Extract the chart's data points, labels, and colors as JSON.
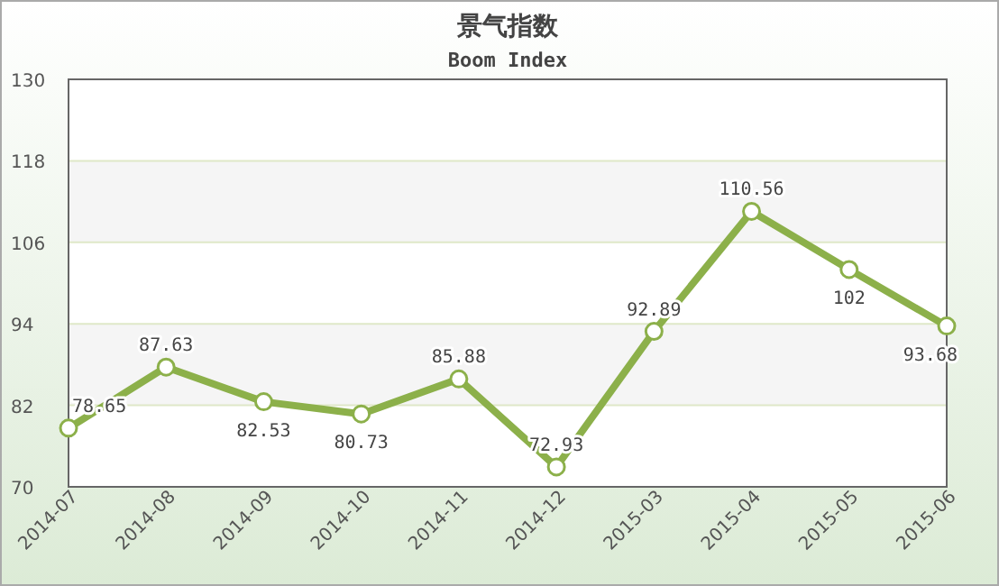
{
  "chart_data": {
    "type": "line",
    "title": "景气指数",
    "subtitle": "Boom Index",
    "categories": [
      "2014-07",
      "2014-08",
      "2014-09",
      "2014-10",
      "2014-11",
      "2014-12",
      "2015-03",
      "2015-04",
      "2015-05",
      "2015-06"
    ],
    "series": [
      {
        "color": "#8cb04a",
        "values": [
          78.65,
          87.63,
          82.53,
          80.73,
          85.88,
          72.93,
          92.89,
          110.56,
          102,
          93.68
        ]
      }
    ],
    "ylim": [
      70,
      130
    ],
    "yticks": [
      70,
      82,
      94,
      106,
      118,
      130
    ],
    "grid": "y",
    "marker": "circle",
    "line_style": "solid",
    "data_labels": true
  }
}
